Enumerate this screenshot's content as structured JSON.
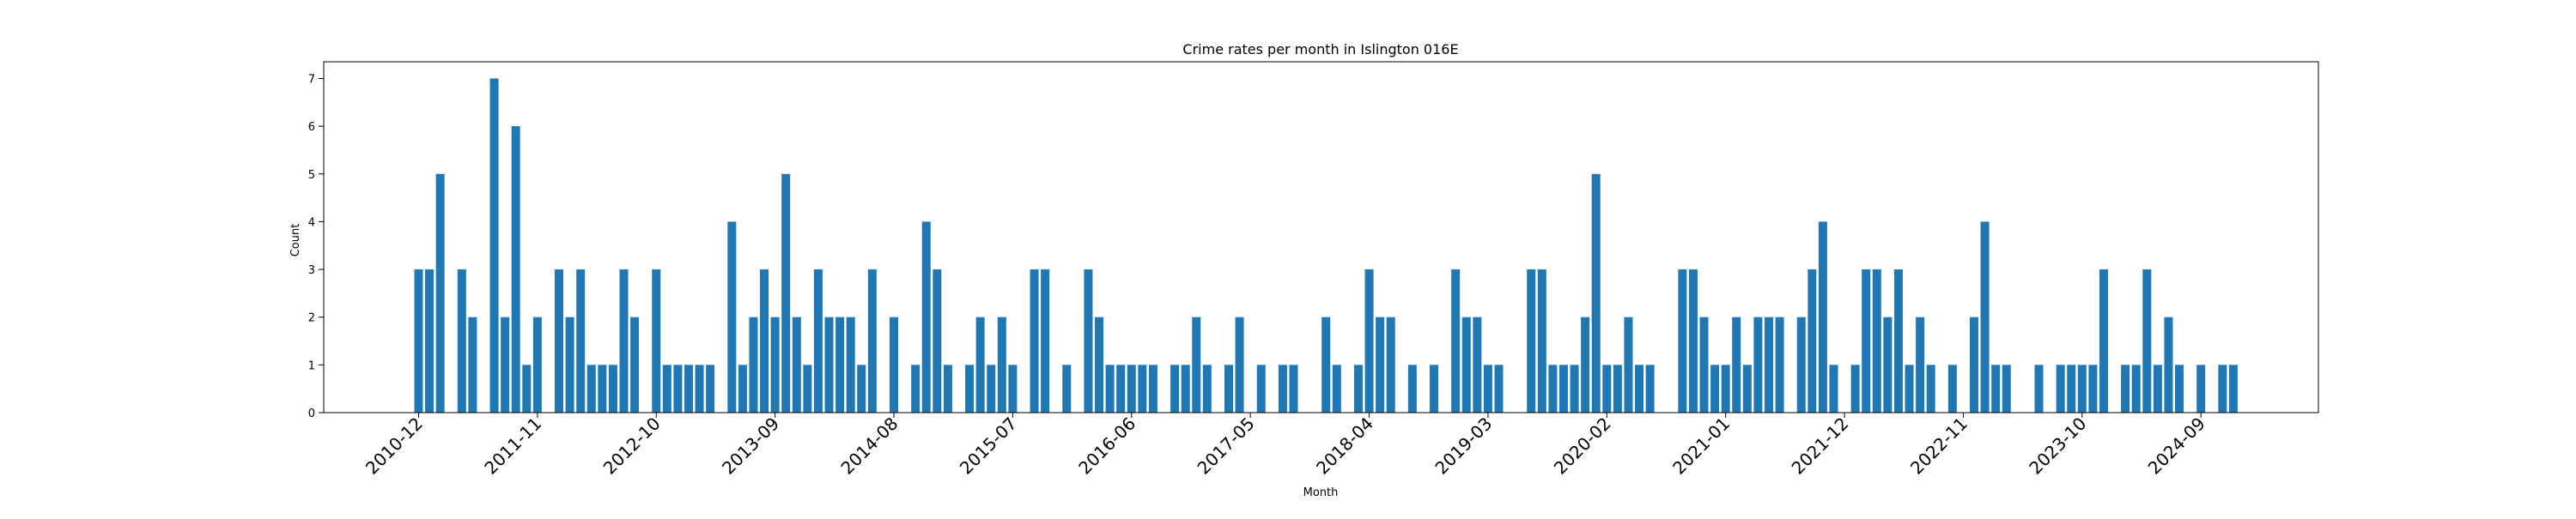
{
  "chart_data": {
    "type": "bar",
    "title": "Crime rates per month in Islington 016E",
    "xlabel": "Month",
    "ylabel": "Count",
    "ylim": [
      0,
      7.35
    ],
    "yticks": [
      0,
      1,
      2,
      3,
      4,
      5,
      6,
      7
    ],
    "xticks": [
      "2010-12",
      "2011-11",
      "2012-10",
      "2013-09",
      "2014-08",
      "2015-07",
      "2016-06",
      "2017-05",
      "2018-04",
      "2019-03",
      "2020-02",
      "2021-01",
      "2021-12",
      "2022-11",
      "2023-10",
      "2024-09"
    ],
    "bar_color": "#1f77b4",
    "grid": false,
    "series": [
      {
        "x": [
          "2010-12",
          "2011-01",
          "2011-02",
          "2011-04",
          "2011-05",
          "2011-07",
          "2011-08",
          "2011-09",
          "2011-10",
          "2011-11",
          "2012-01",
          "2012-02",
          "2012-03",
          "2012-04",
          "2012-05",
          "2012-06",
          "2012-07",
          "2012-08",
          "2012-10",
          "2012-11",
          "2012-12",
          "2013-01",
          "2013-02",
          "2013-03",
          "2013-05",
          "2013-06",
          "2013-07",
          "2013-08",
          "2013-09",
          "2013-10",
          "2013-11",
          "2013-12",
          "2014-01",
          "2014-02",
          "2014-03",
          "2014-04",
          "2014-05",
          "2014-06",
          "2014-08",
          "2014-10",
          "2014-11",
          "2014-12",
          "2015-01",
          "2015-03",
          "2015-04",
          "2015-05",
          "2015-06",
          "2015-07",
          "2015-09",
          "2015-10",
          "2015-12",
          "2016-02",
          "2016-03",
          "2016-04",
          "2016-05",
          "2016-06",
          "2016-07",
          "2016-08",
          "2016-10",
          "2016-11",
          "2016-12",
          "2017-01",
          "2017-03",
          "2017-04",
          "2017-06",
          "2017-08",
          "2017-09",
          "2017-12",
          "2018-01",
          "2018-03",
          "2018-04",
          "2018-05",
          "2018-06",
          "2018-08",
          "2018-10",
          "2018-12",
          "2019-01",
          "2019-02",
          "2019-03",
          "2019-04",
          "2019-07",
          "2019-08",
          "2019-09",
          "2019-10",
          "2019-11",
          "2019-12",
          "2020-01",
          "2020-02",
          "2020-03",
          "2020-04",
          "2020-05",
          "2020-06",
          "2020-09",
          "2020-10",
          "2020-11",
          "2020-12",
          "2021-01",
          "2021-02",
          "2021-03",
          "2021-04",
          "2021-05",
          "2021-06",
          "2021-08",
          "2021-09",
          "2021-10",
          "2021-11",
          "2022-01",
          "2022-02",
          "2022-03",
          "2022-04",
          "2022-05",
          "2022-06",
          "2022-07",
          "2022-08",
          "2022-10",
          "2022-12",
          "2023-01",
          "2023-02",
          "2023-03",
          "2023-06",
          "2023-08",
          "2023-09",
          "2023-10",
          "2023-11",
          "2023-12",
          "2024-02",
          "2024-03",
          "2024-04",
          "2024-05",
          "2024-06",
          "2024-07",
          "2024-09",
          "2024-11",
          "2024-12"
        ],
        "values": [
          3,
          3,
          5,
          3,
          2,
          7,
          2,
          6,
          1,
          2,
          3,
          2,
          3,
          1,
          1,
          1,
          3,
          2,
          3,
          1,
          1,
          1,
          1,
          1,
          4,
          1,
          2,
          3,
          2,
          5,
          2,
          1,
          3,
          2,
          2,
          2,
          1,
          3,
          2,
          1,
          4,
          3,
          1,
          1,
          2,
          1,
          2,
          1,
          3,
          3,
          1,
          3,
          2,
          1,
          1,
          1,
          1,
          1,
          1,
          1,
          2,
          1,
          1,
          2,
          1,
          1,
          1,
          2,
          1,
          1,
          3,
          2,
          2,
          1,
          1,
          3,
          2,
          2,
          1,
          1,
          3,
          3,
          1,
          1,
          1,
          2,
          5,
          1,
          1,
          2,
          1,
          1,
          3,
          3,
          2,
          1,
          1,
          2,
          1,
          2,
          2,
          2,
          2,
          3,
          4,
          1,
          1,
          3,
          3,
          2,
          3,
          1,
          2,
          1,
          1,
          2,
          4,
          1,
          1,
          1,
          1,
          1,
          1,
          1,
          3,
          1,
          1,
          3,
          1,
          2,
          1,
          1,
          1,
          1
        ]
      }
    ]
  }
}
